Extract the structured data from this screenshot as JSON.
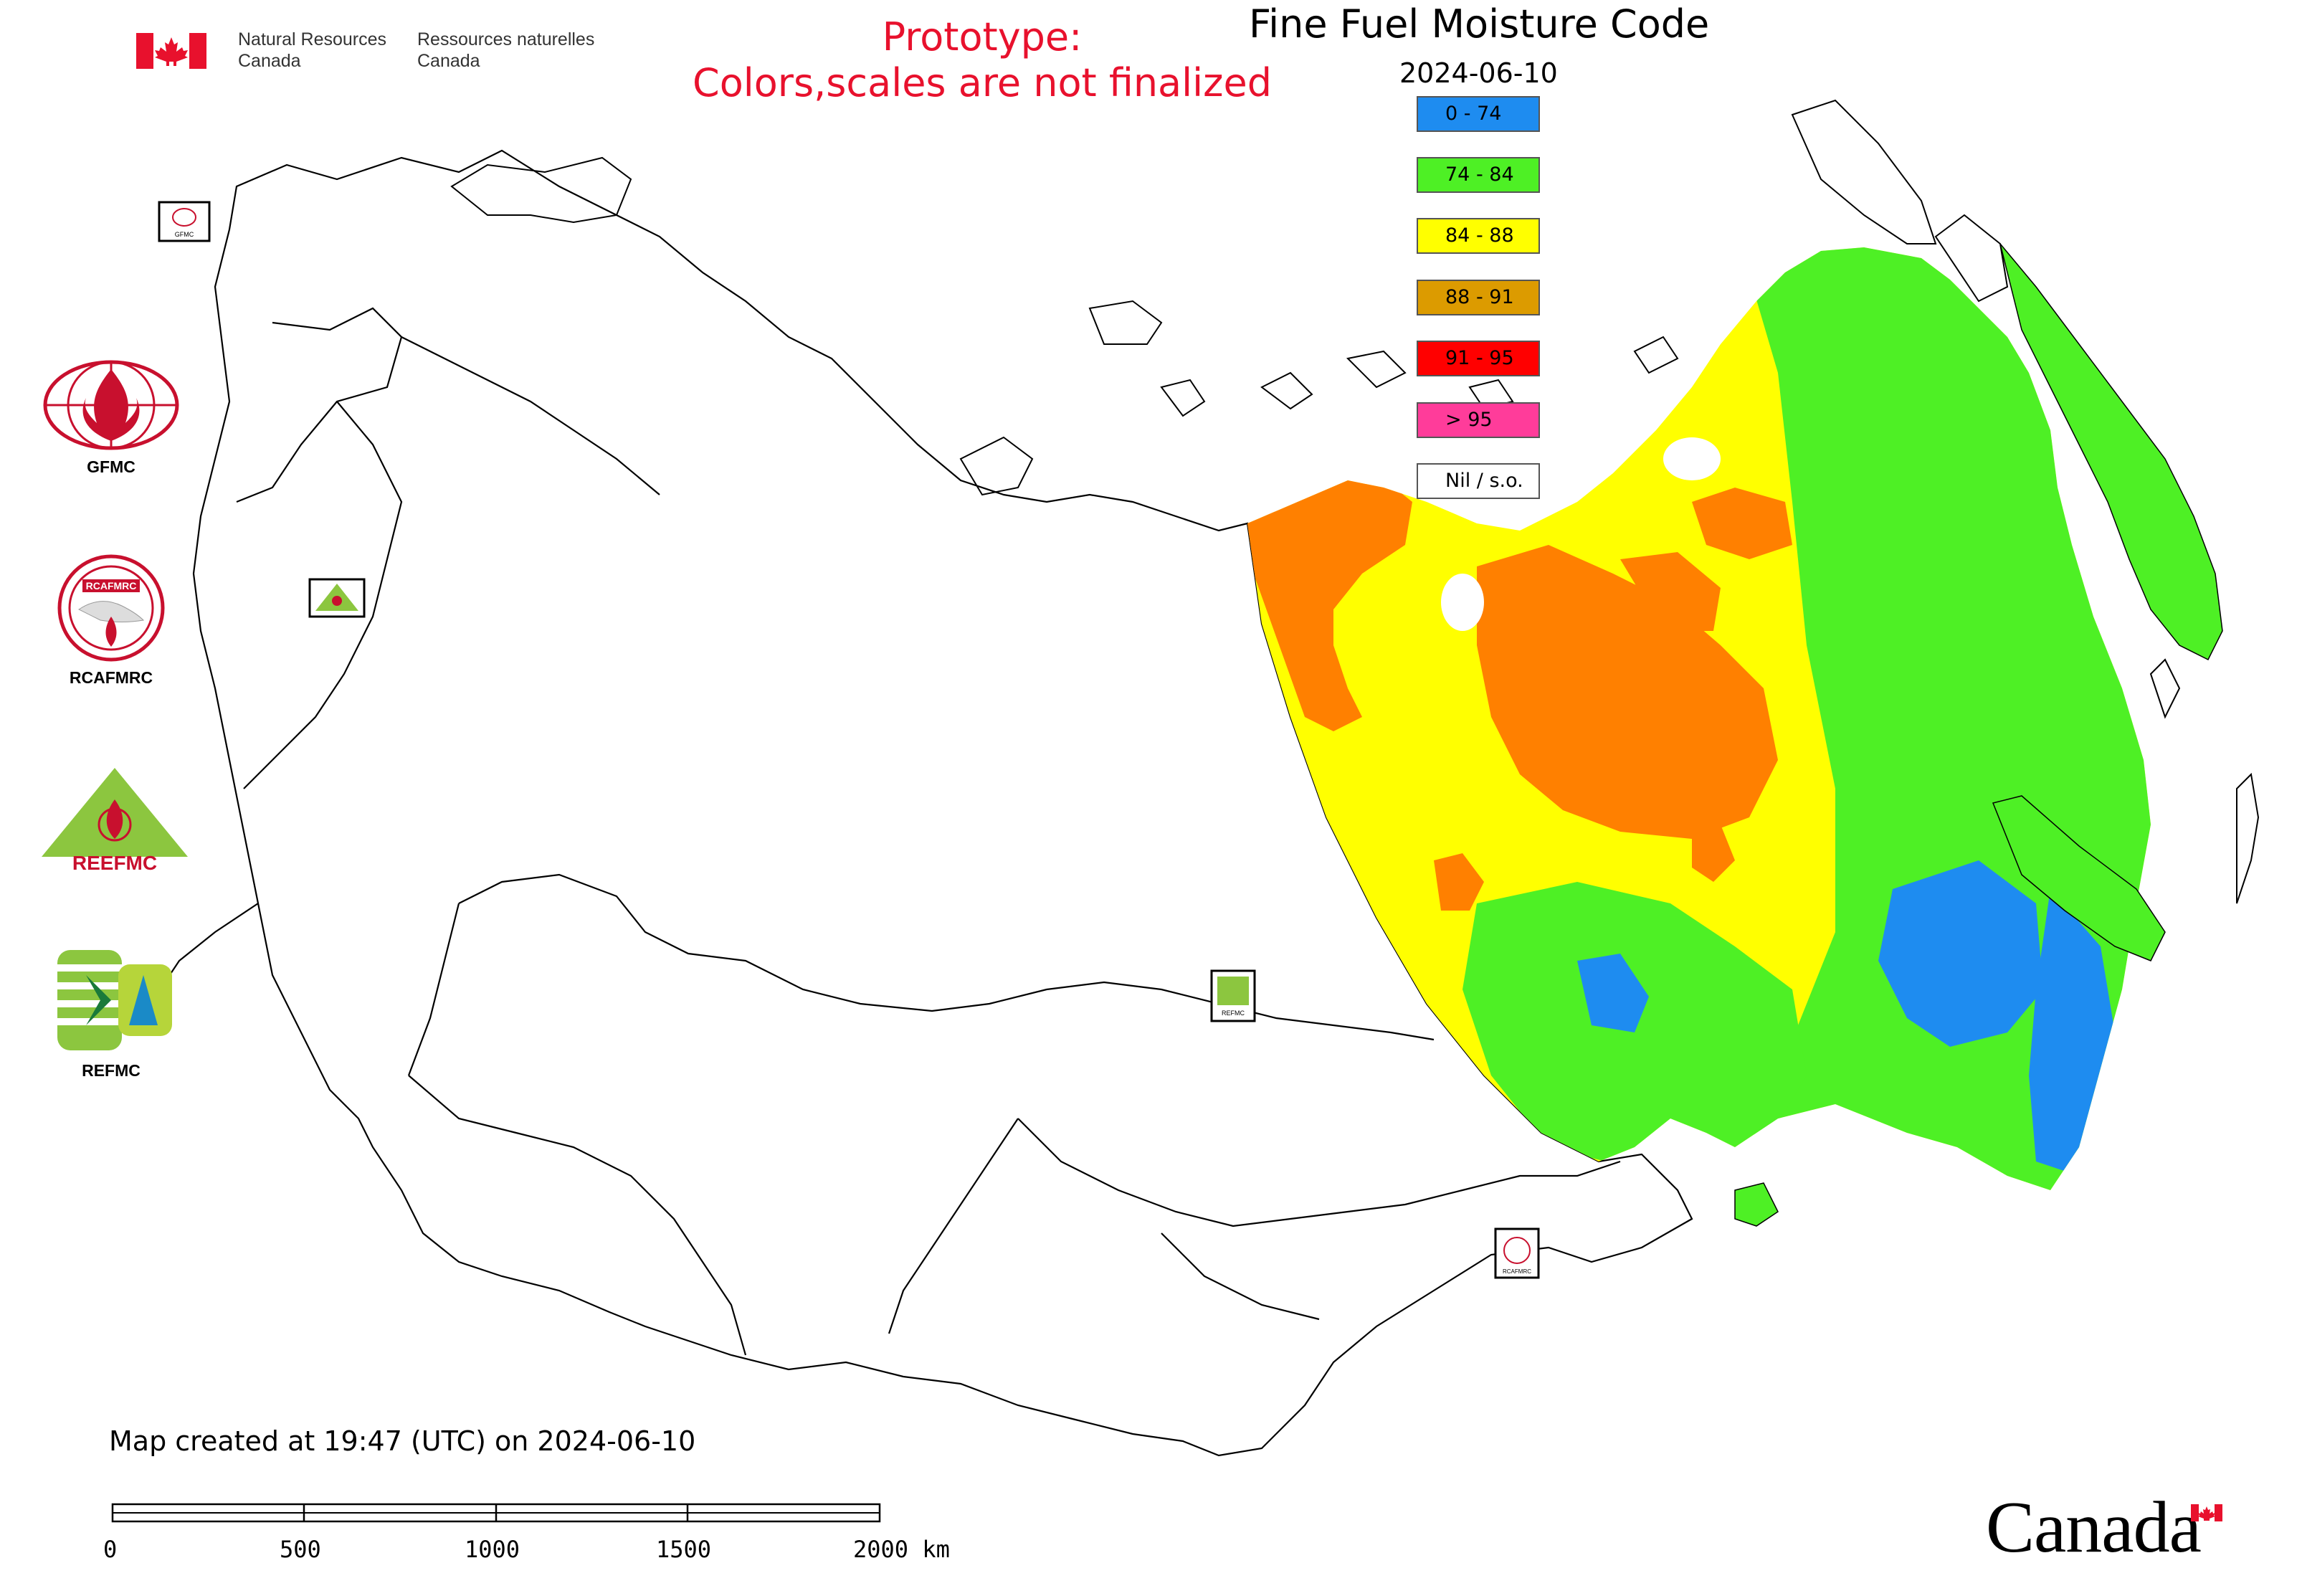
{
  "header": {
    "dept_en_line1": "Natural Resources",
    "dept_en_line2": "Canada",
    "dept_fr_line1": "Ressources naturelles",
    "dept_fr_line2": "Canada",
    "flag_icon": "canada-flag-icon"
  },
  "notice": {
    "line1": "Prototype:",
    "line2": "Colors,scales are not finalized",
    "color": "#e8112d"
  },
  "map": {
    "title": "Fine Fuel Moisture Code",
    "date": "2024-06-10"
  },
  "legend": {
    "items": [
      {
        "label": "0 - 74",
        "color": "#1e8cf0"
      },
      {
        "label": "74 - 84",
        "color": "#4ef025"
      },
      {
        "label": "84 - 88",
        "color": "#ffff00"
      },
      {
        "label": "88 - 91",
        "color": "#dc9b00"
      },
      {
        "label": "91 - 95",
        "color": "#ff0000"
      },
      {
        "label": "> 95",
        "color": "#ff3c9a"
      },
      {
        "label": "Nil / s.o.",
        "color": "#ffffff"
      }
    ]
  },
  "org_logos": {
    "gfmc": "GFMC",
    "rcafmrc": "RCAFMRC",
    "reefmc_text": "REEFMC",
    "refmc": "REFMC"
  },
  "footer": {
    "created_note": "Map created at 19:47 (UTC) on 2024-06-10",
    "scale_labels": [
      "0",
      "500",
      "1000",
      "1500",
      "2000 km"
    ],
    "wordmark": "Canada"
  },
  "colors": {
    "fire_red": "#e8112d",
    "border": "#555555"
  }
}
